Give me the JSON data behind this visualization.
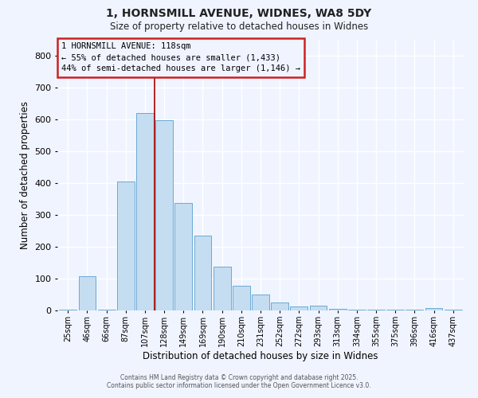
{
  "title1": "1, HORNSMILL AVENUE, WIDNES, WA8 5DY",
  "title2": "Size of property relative to detached houses in Widnes",
  "xlabel": "Distribution of detached houses by size in Widnes",
  "ylabel": "Number of detached properties",
  "bar_labels": [
    "25sqm",
    "46sqm",
    "66sqm",
    "87sqm",
    "107sqm",
    "128sqm",
    "149sqm",
    "169sqm",
    "190sqm",
    "210sqm",
    "231sqm",
    "252sqm",
    "272sqm",
    "293sqm",
    "313sqm",
    "334sqm",
    "355sqm",
    "375sqm",
    "396sqm",
    "416sqm",
    "437sqm"
  ],
  "bar_values": [
    3,
    107,
    3,
    405,
    620,
    597,
    337,
    235,
    138,
    78,
    50,
    25,
    12,
    15,
    5,
    3,
    3,
    3,
    3,
    8,
    3
  ],
  "bar_color": "#c5ddf0",
  "bar_edge_color": "#6aaad4",
  "vline_x": 4.5,
  "vline_color": "#aa0000",
  "annotation_title": "1 HORNSMILL AVENUE: 118sqm",
  "annotation_line1": "← 55% of detached houses are smaller (1,433)",
  "annotation_line2": "44% of semi-detached houses are larger (1,146) →",
  "annotation_box_color": "#cc2222",
  "ylim": [
    0,
    850
  ],
  "yticks": [
    0,
    100,
    200,
    300,
    400,
    500,
    600,
    700,
    800
  ],
  "footer1": "Contains HM Land Registry data © Crown copyright and database right 2025.",
  "footer2": "Contains public sector information licensed under the Open Government Licence v3.0.",
  "bg_color": "#f0f4ff"
}
